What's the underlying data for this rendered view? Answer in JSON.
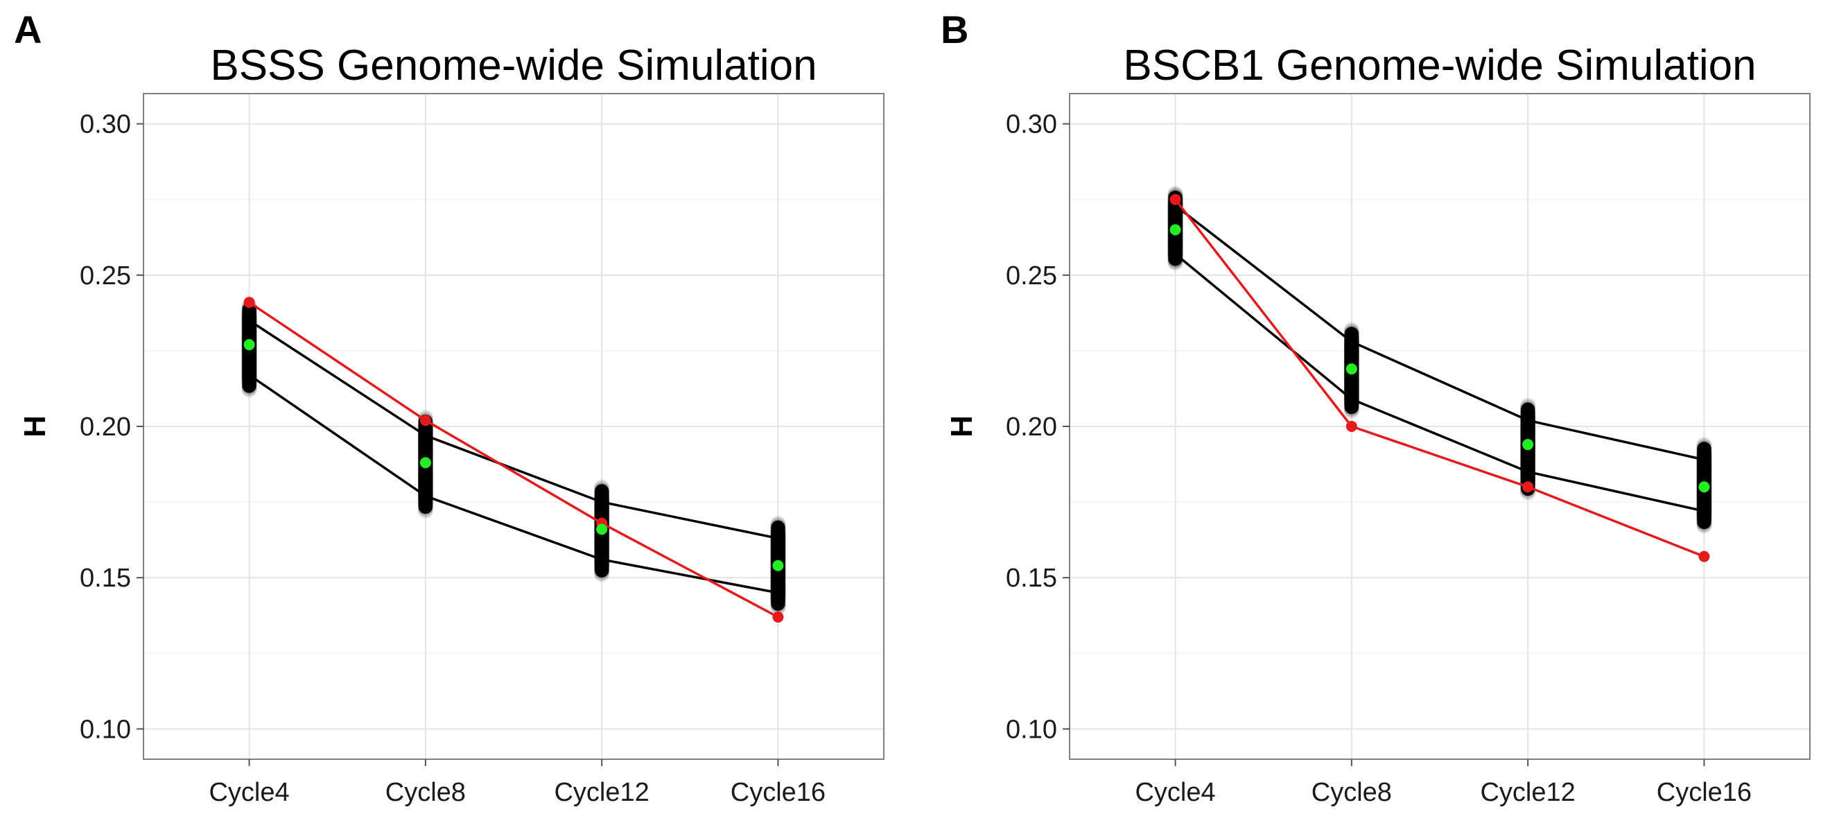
{
  "chart_data": [
    {
      "panel_letter": "A",
      "type": "line",
      "title": "BSSS Genome-wide Simulation",
      "xlabel": "",
      "ylabel": "H",
      "categories": [
        "Cycle4",
        "Cycle8",
        "Cycle12",
        "Cycle16"
      ],
      "ylim": [
        0.09,
        0.31
      ],
      "yticks": [
        0.1,
        0.15,
        0.2,
        0.25,
        0.3
      ],
      "ytick_labels": [
        "0.10",
        "0.15",
        "0.20",
        "0.25",
        "0.30"
      ],
      "grid": true,
      "legend": "none",
      "series": [
        {
          "role": "observed",
          "color": "#e41a1c",
          "values": [
            0.241,
            0.202,
            0.168,
            0.137
          ]
        },
        {
          "role": "simulated-mean",
          "color": "#22ee22",
          "values": [
            0.227,
            0.188,
            0.166,
            0.154
          ]
        },
        {
          "role": "simulated-upper-bound",
          "color": "#000000",
          "values": [
            0.235,
            0.197,
            0.175,
            0.163
          ]
        },
        {
          "role": "simulated-lower-bound",
          "color": "#000000",
          "values": [
            0.217,
            0.177,
            0.156,
            0.145
          ]
        }
      ],
      "simulation_spread": [
        [
          0.212,
          0.24
        ],
        [
          0.172,
          0.203
        ],
        [
          0.151,
          0.18
        ],
        [
          0.14,
          0.168
        ]
      ]
    },
    {
      "panel_letter": "B",
      "type": "line",
      "title": "BSCB1 Genome-wide Simulation",
      "xlabel": "",
      "ylabel": "H",
      "categories": [
        "Cycle4",
        "Cycle8",
        "Cycle12",
        "Cycle16"
      ],
      "ylim": [
        0.09,
        0.31
      ],
      "yticks": [
        0.1,
        0.15,
        0.2,
        0.25,
        0.3
      ],
      "ytick_labels": [
        "0.10",
        "0.15",
        "0.20",
        "0.25",
        "0.30"
      ],
      "grid": true,
      "legend": "none",
      "series": [
        {
          "role": "observed",
          "color": "#e41a1c",
          "values": [
            0.275,
            0.2,
            0.18,
            0.157
          ]
        },
        {
          "role": "simulated-mean",
          "color": "#22ee22",
          "values": [
            0.265,
            0.219,
            0.194,
            0.18
          ]
        },
        {
          "role": "simulated-upper-bound",
          "color": "#000000",
          "values": [
            0.273,
            0.228,
            0.202,
            0.189
          ]
        },
        {
          "role": "simulated-lower-bound",
          "color": "#000000",
          "values": [
            0.257,
            0.209,
            0.185,
            0.172
          ]
        }
      ],
      "simulation_spread": [
        [
          0.254,
          0.277
        ],
        [
          0.205,
          0.232
        ],
        [
          0.178,
          0.207
        ],
        [
          0.167,
          0.194
        ]
      ]
    }
  ]
}
